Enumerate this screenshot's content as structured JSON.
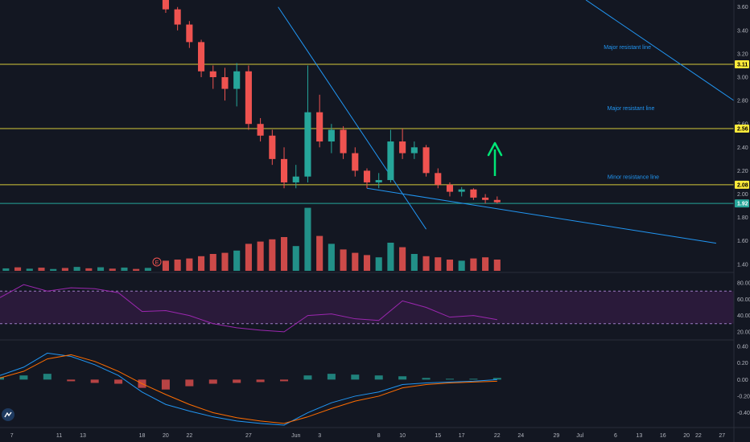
{
  "chart_data": {
    "type": "candlestick",
    "colors": {
      "background": "#131722",
      "up": "#26a69a",
      "down": "#ef5350",
      "hline": "#d4c93a",
      "trend": "#2196f3",
      "arrow": "#00e676",
      "rsi_line": "#9c27b0",
      "rsi_band": "#2a1a3a",
      "macd_line": "#2196f3",
      "signal_line": "#ff6d00",
      "grid": "#2a2e39"
    },
    "price_axis": {
      "ticks": [
        "3.60",
        "3.40",
        "3.20",
        "3.00",
        "2.80",
        "2.60",
        "2.40",
        "2.20",
        "2.00",
        "1.80",
        "1.60",
        "1.40"
      ],
      "range": [
        1.33,
        3.66
      ]
    },
    "price_tags": [
      {
        "label": "3.11",
        "value": 3.11,
        "style": "yellow"
      },
      {
        "label": "2.56",
        "value": 2.56,
        "style": "yellow"
      },
      {
        "label": "2.08",
        "value": 2.08,
        "style": "yellow"
      },
      {
        "label": "1.92",
        "value": 1.92,
        "style": "teal"
      }
    ],
    "horizontal_lines": [
      3.11,
      2.56,
      2.08,
      1.92
    ],
    "annotations": [
      {
        "text": "Major resistant line",
        "price": 3.24,
        "day": 21
      },
      {
        "text": "Major resistant line",
        "price": 2.72,
        "day": 21.3
      },
      {
        "text": "Minor resistance line",
        "price": 2.13,
        "day": 21.5
      }
    ],
    "trendlines": [
      {
        "from": [
          -8.5,
          3.6
        ],
        "to": [
          4,
          1.7
        ]
      },
      {
        "from": [
          -1,
          2.05
        ],
        "to": [
          28.5,
          1.58
        ]
      },
      {
        "from": [
          17.5,
          3.66
        ],
        "to": [
          30,
          2.8
        ]
      }
    ],
    "x_axis": {
      "day_range": [
        -32,
        30
      ],
      "ticks": [
        {
          "label": "7",
          "day": -31
        },
        {
          "label": "11",
          "day": -27
        },
        {
          "label": "13",
          "day": -25
        },
        {
          "label": "18",
          "day": -20
        },
        {
          "label": "20",
          "day": -18
        },
        {
          "label": "22",
          "day": -16
        },
        {
          "label": "27",
          "day": -11
        },
        {
          "label": "Jun",
          "day": -7
        },
        {
          "label": "3",
          "day": -5
        },
        {
          "label": "8",
          "day": 0
        },
        {
          "label": "10",
          "day": 2
        },
        {
          "label": "15",
          "day": 5
        },
        {
          "label": "17",
          "day": 7
        },
        {
          "label": "22",
          "day": 10
        },
        {
          "label": "24",
          "day": 12
        },
        {
          "label": "29",
          "day": 15
        },
        {
          "label": "Jul",
          "day": 17
        },
        {
          "label": "6",
          "day": 20
        },
        {
          "label": "13",
          "day": 22
        },
        {
          "label": "16",
          "day": 24
        },
        {
          "label": "20",
          "day": 26
        },
        {
          "label": "22",
          "day": 27
        },
        {
          "label": "27",
          "day": 29
        }
      ]
    },
    "candles": [
      {
        "d": -18,
        "o": 3.66,
        "h": 3.66,
        "l": 3.55,
        "c": 3.58,
        "v": 0.9
      },
      {
        "d": -17,
        "o": 3.58,
        "h": 3.6,
        "l": 3.4,
        "c": 3.45,
        "v": 1.0
      },
      {
        "d": -16,
        "o": 3.45,
        "h": 3.48,
        "l": 3.25,
        "c": 3.3,
        "v": 1.1
      },
      {
        "d": -15,
        "o": 3.3,
        "h": 3.32,
        "l": 3.0,
        "c": 3.05,
        "v": 1.3
      },
      {
        "d": -14,
        "o": 3.05,
        "h": 3.1,
        "l": 2.9,
        "c": 3.0,
        "v": 1.5
      },
      {
        "d": -13,
        "o": 3.0,
        "h": 3.08,
        "l": 2.8,
        "c": 2.9,
        "v": 1.6
      },
      {
        "d": -12,
        "o": 2.9,
        "h": 3.12,
        "l": 2.75,
        "c": 3.05,
        "v": 1.8
      },
      {
        "d": -11,
        "o": 3.05,
        "h": 3.1,
        "l": 2.55,
        "c": 2.6,
        "v": 2.4
      },
      {
        "d": -10,
        "o": 2.6,
        "h": 2.65,
        "l": 2.45,
        "c": 2.5,
        "v": 2.6
      },
      {
        "d": -9,
        "o": 2.5,
        "h": 2.55,
        "l": 2.25,
        "c": 2.3,
        "v": 2.8
      },
      {
        "d": -8,
        "o": 2.3,
        "h": 2.4,
        "l": 2.05,
        "c": 2.1,
        "v": 3.0
      },
      {
        "d": -7,
        "o": 2.1,
        "h": 2.25,
        "l": 2.05,
        "c": 2.15,
        "v": 2.2
      },
      {
        "d": -6,
        "o": 2.15,
        "h": 3.1,
        "l": 2.1,
        "c": 2.7,
        "v": 5.6
      },
      {
        "d": -5,
        "o": 2.7,
        "h": 2.85,
        "l": 2.4,
        "c": 2.45,
        "v": 3.1
      },
      {
        "d": -4,
        "o": 2.45,
        "h": 2.6,
        "l": 2.35,
        "c": 2.55,
        "v": 2.4
      },
      {
        "d": -3,
        "o": 2.55,
        "h": 2.58,
        "l": 2.3,
        "c": 2.35,
        "v": 1.9
      },
      {
        "d": -2,
        "o": 2.35,
        "h": 2.4,
        "l": 2.15,
        "c": 2.2,
        "v": 1.6
      },
      {
        "d": -1,
        "o": 2.2,
        "h": 2.22,
        "l": 2.05,
        "c": 2.1,
        "v": 1.4
      },
      {
        "d": 0,
        "o": 2.1,
        "h": 2.18,
        "l": 2.05,
        "c": 2.12,
        "v": 1.2
      },
      {
        "d": 1,
        "o": 2.12,
        "h": 2.55,
        "l": 2.1,
        "c": 2.45,
        "v": 2.5
      },
      {
        "d": 2,
        "o": 2.45,
        "h": 2.56,
        "l": 2.3,
        "c": 2.35,
        "v": 2.1
      },
      {
        "d": 3,
        "o": 2.35,
        "h": 2.45,
        "l": 2.3,
        "c": 2.4,
        "v": 1.5
      },
      {
        "d": 4,
        "o": 2.4,
        "h": 2.42,
        "l": 2.15,
        "c": 2.18,
        "v": 1.3
      },
      {
        "d": 5,
        "o": 2.18,
        "h": 2.22,
        "l": 2.05,
        "c": 2.08,
        "v": 1.2
      },
      {
        "d": 6,
        "o": 2.08,
        "h": 2.1,
        "l": 1.98,
        "c": 2.02,
        "v": 1.0
      },
      {
        "d": 7,
        "o": 2.02,
        "h": 2.06,
        "l": 1.98,
        "c": 2.04,
        "v": 0.9
      },
      {
        "d": 8,
        "o": 2.04,
        "h": 2.05,
        "l": 1.95,
        "c": 1.97,
        "v": 1.1
      },
      {
        "d": 9,
        "o": 1.97,
        "h": 2.0,
        "l": 1.92,
        "c": 1.95,
        "v": 1.2
      },
      {
        "d": 10,
        "o": 1.95,
        "h": 1.98,
        "l": 1.92,
        "c": 1.93,
        "v": 1.0
      }
    ],
    "rsi": {
      "ticks": [
        "80.00",
        "60.00",
        "40.00",
        "20.00"
      ],
      "range": [
        12,
        88
      ],
      "upper": 70,
      "lower": 30,
      "days": [
        -32,
        -30,
        -28,
        -26,
        -24,
        -22,
        -20,
        -18,
        -16,
        -14,
        -12,
        -10,
        -8,
        -6,
        -4,
        -2,
        0,
        2,
        4,
        6,
        8,
        10
      ],
      "values": [
        62,
        78,
        70,
        74,
        73,
        68,
        45,
        46,
        40,
        30,
        25,
        22,
        20,
        40,
        42,
        36,
        34,
        58,
        50,
        38,
        40,
        35
      ]
    },
    "macd": {
      "ticks": [
        "0.40",
        "0.20",
        "0.00",
        "-0.20",
        "-0.40"
      ],
      "range": [
        -0.56,
        0.45
      ],
      "days": [
        -32,
        -30,
        -28,
        -26,
        -24,
        -22,
        -20,
        -18,
        -16,
        -14,
        -12,
        -10,
        -8,
        -6,
        -4,
        -2,
        0,
        2,
        4,
        6,
        8,
        10
      ],
      "macd": [
        0.05,
        0.15,
        0.32,
        0.28,
        0.18,
        0.05,
        -0.15,
        -0.3,
        -0.38,
        -0.45,
        -0.5,
        -0.53,
        -0.55,
        -0.4,
        -0.28,
        -0.2,
        -0.15,
        -0.06,
        -0.04,
        -0.03,
        -0.02,
        0.0
      ],
      "signal": [
        0.02,
        0.1,
        0.25,
        0.3,
        0.22,
        0.1,
        -0.05,
        -0.18,
        -0.3,
        -0.4,
        -0.46,
        -0.5,
        -0.53,
        -0.45,
        -0.35,
        -0.26,
        -0.2,
        -0.1,
        -0.06,
        -0.04,
        -0.03,
        -0.02
      ],
      "hist": [
        0.03,
        0.05,
        0.07,
        -0.02,
        -0.04,
        -0.05,
        -0.1,
        -0.12,
        -0.08,
        -0.05,
        -0.04,
        -0.03,
        -0.02,
        0.05,
        0.07,
        0.06,
        0.05,
        0.04,
        0.02,
        0.01,
        0.01,
        0.02
      ]
    }
  }
}
